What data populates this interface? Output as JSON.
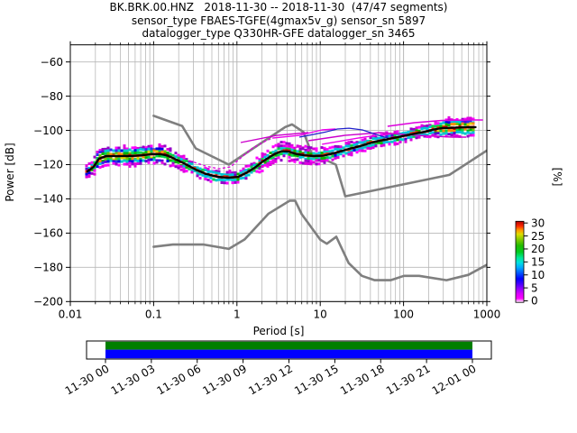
{
  "title": {
    "line1": "BK.BRK.00.HNZ   2018-11-30 -- 2018-11-30  (47/47 segments)",
    "line2": "sensor_type FBAES-TGFE(4gmax5v_g) sensor_sn 5897",
    "line3": "datalogger_type Q330HR-GFE datalogger_sn 3465"
  },
  "axes": {
    "x_label": "Period [s]",
    "y_label": "Power [dB]",
    "x_tick_labels": [
      "0.01",
      "0.1",
      "1",
      "10",
      "100",
      "1000"
    ],
    "x_tick_values": [
      0.01,
      0.1,
      1,
      10,
      100,
      1000
    ],
    "y_tick_labels": [
      "−60",
      "−80",
      "−100",
      "−120",
      "−140",
      "−160",
      "−180",
      "−200"
    ],
    "y_tick_values": [
      -60,
      -80,
      -100,
      -120,
      -140,
      -160,
      -180,
      -200
    ]
  },
  "colorbar": {
    "label": "[%]",
    "tick_labels": [
      "0",
      "5",
      "10",
      "15",
      "20",
      "25",
      "30"
    ],
    "tick_values": [
      0,
      5,
      10,
      15,
      20,
      25,
      30
    ],
    "gradient": [
      [
        0.0,
        "#ffffff"
      ],
      [
        0.05,
        "#ff00ff"
      ],
      [
        0.11,
        "#d400ff"
      ],
      [
        0.17,
        "#9000ff"
      ],
      [
        0.23,
        "#4400ff"
      ],
      [
        0.29,
        "#0000ff"
      ],
      [
        0.36,
        "#0055ff"
      ],
      [
        0.43,
        "#00aaff"
      ],
      [
        0.49,
        "#00e0e0"
      ],
      [
        0.55,
        "#00e896"
      ],
      [
        0.62,
        "#00cc22"
      ],
      [
        0.7,
        "#22bb00"
      ],
      [
        0.78,
        "#88cc00"
      ],
      [
        0.84,
        "#dddd00"
      ],
      [
        0.89,
        "#ff9900"
      ],
      [
        0.94,
        "#ff2a00"
      ],
      [
        1.0,
        "#b40000"
      ]
    ]
  },
  "timeline": {
    "labels": [
      "11-30 00",
      "11-30 03",
      "11-30 06",
      "11-30 09",
      "11-30 12",
      "11-30 15",
      "11-30 18",
      "11-30 21",
      "12-01 00"
    ],
    "coverage_color": "#007f00",
    "gap_color": "#0000ff"
  },
  "chart_data": {
    "type": "heatmap",
    "title": "BK.BRK.00.HNZ 2018-11-30 -- 2018-11-30 (47/47 segments)",
    "xlabel": "Period [s]",
    "ylabel": "Power [dB]",
    "clabel": "[%]",
    "xscale": "log",
    "xlim": [
      0.01,
      1000
    ],
    "ylim": [
      -200,
      -50
    ],
    "clim": [
      0,
      30
    ],
    "grid": true,
    "gridline_color": "#b8b8b8",
    "noise_model_color": "#7f7f7f",
    "mode_line_color": "#000000",
    "mode_curve": {
      "period": [
        0.016,
        0.019,
        0.022,
        0.027,
        0.037,
        0.053,
        0.074,
        0.094,
        0.121,
        0.147,
        0.188,
        0.241,
        0.319,
        0.431,
        0.581,
        0.787,
        1.04,
        1.33,
        1.71,
        2.19,
        2.81,
        3.43,
        4.17,
        5.1,
        6.38,
        8.4,
        11.1,
        14.9,
        21.5,
        31.2,
        45.3,
        65.8,
        95.5,
        139,
        192,
        234,
        286,
        415,
        602,
        733
      ],
      "db": [
        -124.0,
        -121.3,
        -116.6,
        -115.0,
        -115.0,
        -115.0,
        -114.5,
        -113.9,
        -113.9,
        -114.7,
        -117.1,
        -119.7,
        -122.9,
        -125.5,
        -127.1,
        -127.7,
        -127.1,
        -124.5,
        -121.1,
        -117.1,
        -113.9,
        -112.1,
        -112.4,
        -113.7,
        -114.5,
        -115.0,
        -114.7,
        -113.2,
        -111.0,
        -108.9,
        -106.6,
        -105.0,
        -103.4,
        -101.8,
        -100.5,
        -99.4,
        -98.7,
        -98.4,
        -98.1,
        -98.1
      ],
      "halfwidth_db": [
        2.1,
        3.2,
        4.2,
        4.7,
        4.7,
        4.7,
        4.7,
        4.2,
        4.2,
        3.7,
        3.2,
        3.2,
        2.6,
        2.6,
        2.6,
        2.6,
        2.6,
        2.6,
        3.2,
        3.2,
        3.2,
        3.2,
        3.2,
        3.2,
        3.2,
        3.2,
        3.2,
        2.6,
        2.6,
        2.6,
        2.6,
        2.6,
        2.6,
        2.6,
        2.6,
        3.2,
        4.7,
        4.7,
        4.7,
        4.7
      ]
    },
    "noise_models": {
      "nhnm": {
        "period": [
          0.1,
          0.22,
          0.32,
          0.8,
          3.8,
          4.6,
          6.3,
          7.9,
          15.4,
          20,
          354.8,
          1000
        ],
        "db": [
          -91.5,
          -97.4,
          -110.5,
          -120.0,
          -98.0,
          -96.5,
          -101.0,
          -113.5,
          -120.0,
          -138.5,
          -126.0,
          -111.7
        ]
      },
      "nlnm": {
        "period": [
          0.1,
          0.17,
          0.4,
          0.8,
          1.24,
          2.4,
          4.3,
          5.0,
          6.0,
          10.0,
          12.0,
          15.6,
          21.9,
          31.6,
          45.0,
          70.0,
          101,
          154,
          328,
          600,
          1000
        ],
        "db": [
          -168.0,
          -166.7,
          -166.7,
          -169.2,
          -163.7,
          -148.6,
          -141.1,
          -141.1,
          -149.0,
          -163.8,
          -166.2,
          -162.1,
          -177.5,
          -185.0,
          -187.5,
          -187.5,
          -185.0,
          -185.0,
          -187.5,
          -184.4,
          -178.5
        ]
      }
    },
    "overlays": [
      {
        "name": "low-probability-trail",
        "color": "#dd00dd",
        "dashed": true,
        "width": 1.3,
        "period": [
          0.267,
          0.418,
          0.606,
          0.837,
          1.08,
          1.54,
          2.25,
          2.66
        ],
        "db": [
          -117.6,
          -120.8,
          -122.4,
          -121.3,
          -116.6,
          -110.3,
          -106.0,
          -104.5
        ]
      },
      {
        "name": "magenta-excursion-1",
        "color": "#cc00cc",
        "dashed": false,
        "width": 1.4,
        "period": [
          1.11,
          3.01,
          7.21
        ],
        "db": [
          -107.1,
          -102.9,
          -101.3
        ]
      },
      {
        "name": "magenta-excursion-2",
        "color": "#ee00ee",
        "dashed": false,
        "width": 1.4,
        "period": [
          2.66,
          5.62,
          10.5,
          15.3
        ],
        "db": [
          -104.5,
          -102.9,
          -99.7,
          -99.2
        ]
      },
      {
        "name": "magenta-excursion-3",
        "color": "#cc00cc",
        "dashed": false,
        "width": 1.4,
        "period": [
          7.21,
          19.6,
          53.1,
          144,
          389,
          565
        ],
        "db": [
          -106.0,
          -102.9,
          -101.3,
          -102.9,
          -103.9,
          -103.9
        ]
      },
      {
        "name": "magenta-excursion-4",
        "color": "#ee00ee",
        "dashed": false,
        "width": 1.4,
        "period": [
          10.5,
          28.4,
          46.9
        ],
        "db": [
          -108.1,
          -104.5,
          -102.9
        ]
      },
      {
        "name": "magenta-excursion-5",
        "color": "#dd00dd",
        "dashed": false,
        "width": 1.6,
        "period": [
          64.3,
          136,
          286,
          602,
          896
        ],
        "db": [
          -97.6,
          -95.5,
          -94.2,
          -93.9,
          -93.9
        ]
      },
      {
        "name": "blue-excursion",
        "color": "#2020cc",
        "dashed": false,
        "width": 1.2,
        "period": [
          5.62,
          8.19,
          11.9,
          16.1,
          22.2,
          32.0,
          43.1,
          59.4,
          72.6
        ],
        "db": [
          -103.9,
          -102.4,
          -100.8,
          -99.2,
          -98.7,
          -99.7,
          -101.8,
          -103.9,
          -105.0
        ]
      }
    ],
    "legend": null
  }
}
